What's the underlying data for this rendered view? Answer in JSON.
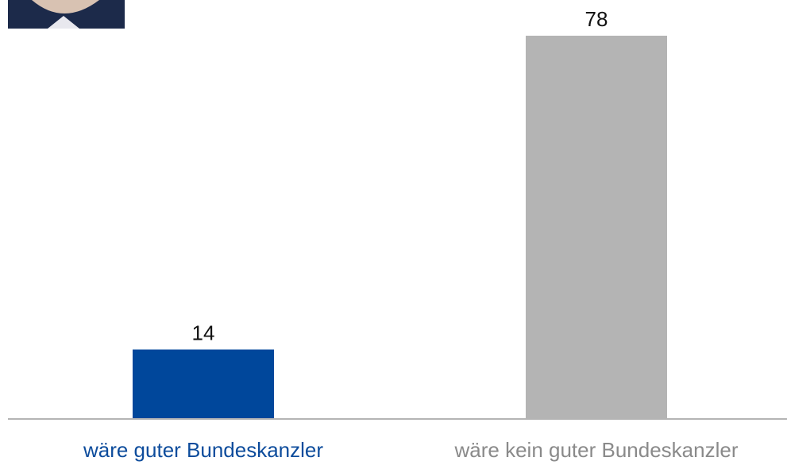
{
  "chart_data": {
    "type": "bar",
    "categories": [
      "wäre guter Bundeskanzler",
      "wäre kein guter Bundeskanzler"
    ],
    "values": [
      14,
      78
    ],
    "colors": [
      "#00479b",
      "#b4b4b4"
    ],
    "label_colors": [
      "#0d4c9c",
      "#8a8a8a"
    ]
  }
}
